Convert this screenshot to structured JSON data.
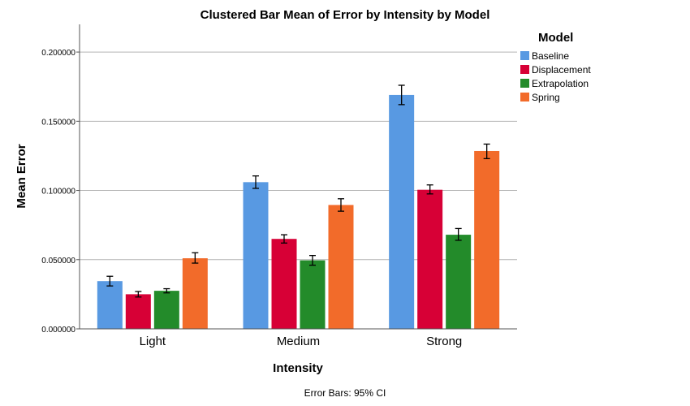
{
  "chart_data": {
    "type": "bar",
    "title": "Clustered Bar Mean of Error by Intensity by Model",
    "xlabel": "Intensity",
    "ylabel": "Mean Error",
    "categories": [
      "Light",
      "Medium",
      "Strong"
    ],
    "ylim": [
      0,
      0.22
    ],
    "yticks": [
      {
        "value": 0.0,
        "label": "0.000000"
      },
      {
        "value": 0.05,
        "label": "0.050000"
      },
      {
        "value": 0.1,
        "label": "0.100000"
      },
      {
        "value": 0.15,
        "label": "0.150000"
      },
      {
        "value": 0.2,
        "label": "0.200000"
      }
    ],
    "grid": "horizontal",
    "legend": {
      "title": "Model",
      "position": "top-right"
    },
    "footnote": "Error Bars: 95% CI",
    "series": [
      {
        "name": "Baseline",
        "color": "#5899e2",
        "values": [
          0.0345,
          0.106,
          0.169
        ],
        "ci_low": [
          0.031,
          0.1015,
          0.162
        ],
        "ci_high": [
          0.038,
          0.1105,
          0.176
        ]
      },
      {
        "name": "Displacement",
        "color": "#d70036",
        "values": [
          0.025,
          0.065,
          0.1005
        ],
        "ci_low": [
          0.023,
          0.062,
          0.0975
        ],
        "ci_high": [
          0.027,
          0.068,
          0.104
        ]
      },
      {
        "name": "Extrapolation",
        "color": "#238b2a",
        "values": [
          0.0275,
          0.0495,
          0.068
        ],
        "ci_low": [
          0.026,
          0.046,
          0.064
        ],
        "ci_high": [
          0.029,
          0.053,
          0.0725
        ]
      },
      {
        "name": "Spring",
        "color": "#f26b2a",
        "values": [
          0.051,
          0.0895,
          0.1285
        ],
        "ci_low": [
          0.0475,
          0.085,
          0.123
        ],
        "ci_high": [
          0.055,
          0.094,
          0.1335
        ]
      }
    ]
  }
}
